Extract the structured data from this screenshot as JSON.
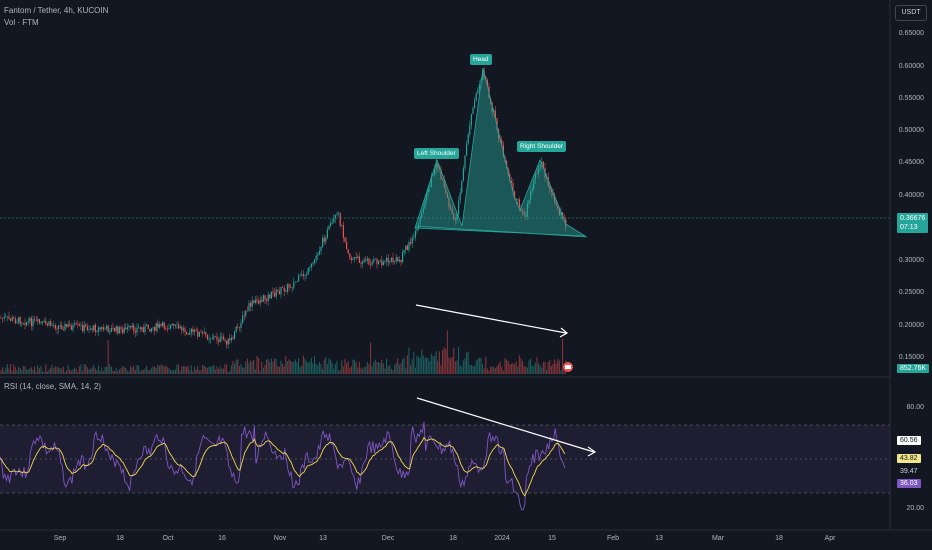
{
  "header": {
    "title": "Fantom / Tether, 4h, KUCOIN",
    "volume_label": "Vol · FTM",
    "currency_button": "USDT"
  },
  "price_axis": [
    "0.65000",
    "0.60000",
    "0.55000",
    "0.50000",
    "0.45000",
    "0.40000",
    "0.30000",
    "0.25000",
    "0.20000",
    "0.15000"
  ],
  "price_tag": {
    "price": "0.36676",
    "countdown": "07:13",
    "color": "#26a69a"
  },
  "volume_tag": {
    "value": "852.76K",
    "color": "#26a69a"
  },
  "annotations": {
    "head": "Head",
    "left_shoulder": "Left Shoulder",
    "right_shoulder": "Right Shoulder"
  },
  "rsi": {
    "title": "RSI (14, close, SMA, 14, 2)",
    "axis": [
      "80.00",
      "20.00"
    ],
    "tags": [
      {
        "value": "60.56",
        "color": "#ffffff",
        "text": "#131722"
      },
      {
        "value": "43.82",
        "color": "#f2e68a",
        "text": "#131722"
      },
      {
        "value": "39.47",
        "color": "#131722",
        "text": "#d1d4dc"
      },
      {
        "value": "36.03",
        "color": "#7e57c2",
        "text": "#ffffff"
      }
    ]
  },
  "time_axis": [
    "Sep",
    "18",
    "Oct",
    "16",
    "Nov",
    "13",
    "Dec",
    "18",
    "2024",
    "15",
    "Feb",
    "13",
    "Mar",
    "18",
    "Apr"
  ],
  "colors": {
    "up": "#26a69a",
    "down": "#ef5350",
    "rsi_line": "#7e57c2",
    "rsi_ma": "#f2d94e",
    "pattern_fill": "#26a69a"
  }
}
